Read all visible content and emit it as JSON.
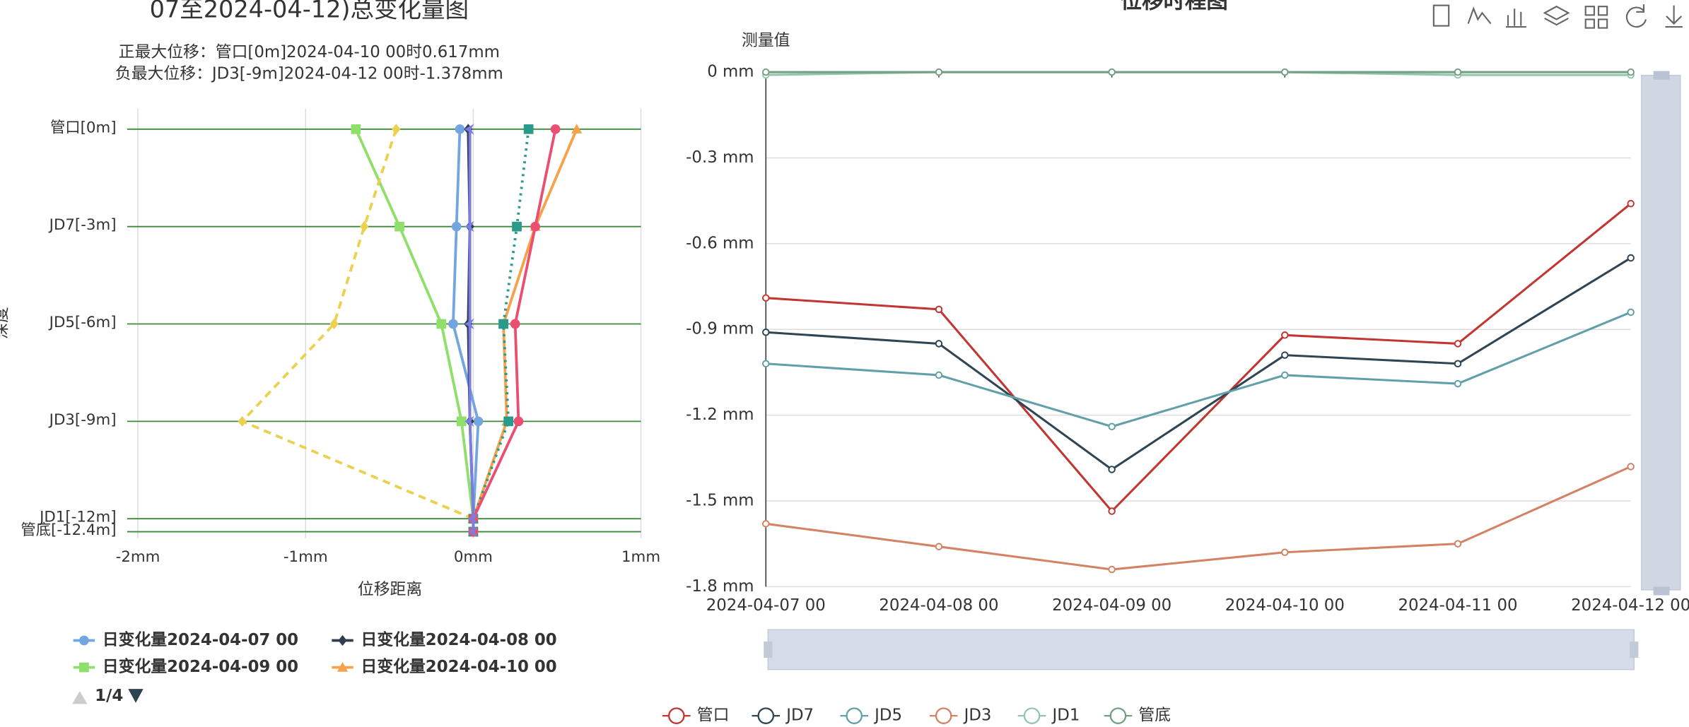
{
  "chart_data": [
    {
      "type": "line",
      "orientation": "horizontal",
      "title": "07至2024-04-12)总变化量图",
      "subtitle": [
        "正最大位移：管口[0m]2024-04-10 00时0.617mm",
        "负最大位移：JD3[-9m]2024-04-12 00时-1.378mm"
      ],
      "x_label": "位移距离",
      "y_label": "深度",
      "xlim": [
        -2,
        1
      ],
      "xticks": [
        {
          "value": -2,
          "label": "-2mm"
        },
        {
          "value": -1,
          "label": "-1mm"
        },
        {
          "value": 0,
          "label": "0mm"
        },
        {
          "value": 1,
          "label": "1mm"
        }
      ],
      "ylim": [
        -12.6,
        0.63
      ],
      "yticks": [
        {
          "value": 0,
          "label": "管口[0m]"
        },
        {
          "value": -3,
          "label": "JD7[-3m]"
        },
        {
          "value": -6,
          "label": "JD5[-6m]"
        },
        {
          "value": -9,
          "label": "JD3[-9m]"
        },
        {
          "value": -12,
          "label": "JD1[-12m]"
        },
        {
          "value": -12.4,
          "label": "管底[-12.4m]"
        }
      ],
      "y": [
        0,
        -3,
        -6,
        -9,
        -12,
        -12.4
      ],
      "series": [
        {
          "name": "日变化量2024-04-07 00",
          "color": "#73a6e0",
          "symbol": "circle",
          "values": [
            -0.08,
            -0.1,
            -0.12,
            0.03,
            0,
            0
          ]
        },
        {
          "name": "日变化量2024-04-08 00",
          "color": "#2f3e4e",
          "symbol": "diamond",
          "values": [
            -0.03,
            -0.02,
            -0.03,
            -0.02,
            0,
            0
          ]
        },
        {
          "name": "日变化量2024-04-09 00",
          "color": "#8fe06a",
          "symbol": "square",
          "values": [
            -0.7,
            -0.44,
            -0.19,
            -0.07,
            0,
            0
          ]
        },
        {
          "name": "日变化量2024-04-10 00",
          "color": "#f5a24b",
          "symbol": "triangle",
          "values": [
            0.617,
            0.37,
            0.18,
            0.2,
            0,
            0
          ]
        },
        {
          "color": "#ecd050",
          "symbol": "diamond",
          "dash": "dashed",
          "values": [
            -0.46,
            -0.65,
            -0.83,
            -1.378,
            0,
            0
          ]
        },
        {
          "color": "#2a9a8a",
          "symbol": "square",
          "dash": "dotted",
          "values": [
            0.33,
            0.26,
            0.18,
            0.21,
            0,
            0
          ]
        },
        {
          "color": "#ea4f72",
          "symbol": "circle",
          "values": [
            0.49,
            0.37,
            0.25,
            0.27,
            0,
            0
          ]
        },
        {
          "color": "#7b7ee0",
          "symbol": "arrow",
          "values": [
            -0.02,
            -0.02,
            -0.02,
            -0.02,
            0,
            0
          ]
        }
      ],
      "legend_page": "1/4"
    },
    {
      "type": "line",
      "title": "位移时程图",
      "y_label": "测量值",
      "categories": [
        "2024-04-07 00",
        "2024-04-08 00",
        "2024-04-09 00",
        "2024-04-10 00",
        "2024-04-11 00",
        "2024-04-12 00"
      ],
      "ylim": [
        -1.8,
        0
      ],
      "yticks": [
        {
          "value": 0,
          "label": "0 mm"
        },
        {
          "value": -0.3,
          "label": "-0.3 mm"
        },
        {
          "value": -0.6,
          "label": "-0.6 mm"
        },
        {
          "value": -0.9,
          "label": "-0.9 mm"
        },
        {
          "value": -1.2,
          "label": "-1.2 mm"
        },
        {
          "value": -1.5,
          "label": "-1.5 mm"
        },
        {
          "value": -1.8,
          "label": "-1.8 mm"
        }
      ],
      "grid": true,
      "series": [
        {
          "name": "管口",
          "color": "#c23531",
          "values": [
            -0.79,
            -0.83,
            -1.536,
            -0.92,
            -0.95,
            -0.46
          ]
        },
        {
          "name": "JD7",
          "color": "#2f4554",
          "values": [
            -0.91,
            -0.95,
            -1.39,
            -0.99,
            -1.02,
            -0.65
          ]
        },
        {
          "name": "JD5",
          "color": "#61a0a8",
          "values": [
            -1.02,
            -1.06,
            -1.24,
            -1.06,
            -1.09,
            -0.84
          ]
        },
        {
          "name": "JD3",
          "color": "#d48265",
          "values": [
            -1.58,
            -1.66,
            -1.74,
            -1.68,
            -1.65,
            -1.38
          ]
        },
        {
          "name": "JD1",
          "color": "#91c7ae",
          "values": [
            -0.01,
            0,
            0,
            0,
            -0.01,
            -0.01
          ]
        },
        {
          "name": "管底",
          "color": "#749f83",
          "values": [
            0,
            0,
            0,
            0,
            0,
            0
          ]
        }
      ]
    }
  ]
}
